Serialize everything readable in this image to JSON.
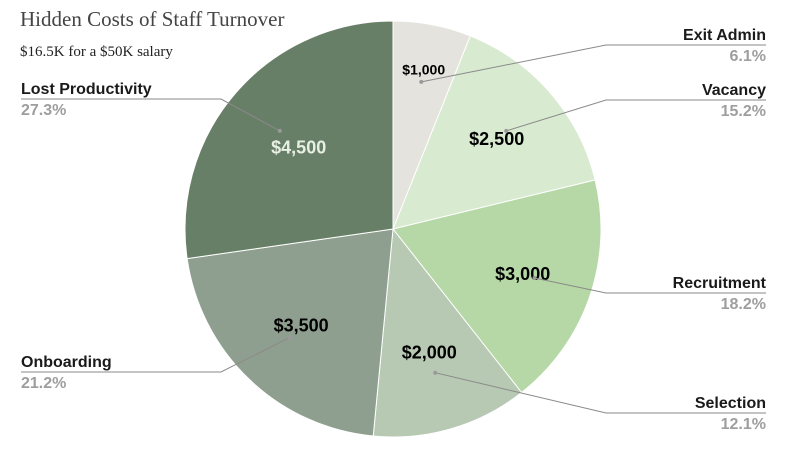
{
  "chart_data": {
    "type": "pie",
    "title": "Hidden Costs of Staff Turnover",
    "subtitle": "$16.5K for a $50K salary",
    "slices": [
      {
        "label": "Exit Admin",
        "value": 1000,
        "value_label": "$1,000",
        "percent_label": "6.1%",
        "color": "#e4e3de",
        "text_color": "#000000"
      },
      {
        "label": "Vacancy",
        "value": 2500,
        "value_label": "$2,500",
        "percent_label": "15.2%",
        "color": "#d8ead0",
        "text_color": "#000000"
      },
      {
        "label": "Recruitment",
        "value": 3000,
        "value_label": "$3,000",
        "percent_label": "18.2%",
        "color": "#b6d8a6",
        "text_color": "#000000"
      },
      {
        "label": "Selection",
        "value": 2000,
        "value_label": "$2,000",
        "percent_label": "12.1%",
        "color": "#b7c8b3",
        "text_color": "#000000"
      },
      {
        "label": "Onboarding",
        "value": 3500,
        "value_label": "$3,500",
        "percent_label": "21.2%",
        "color": "#8f9f8f",
        "text_color": "#000000"
      },
      {
        "label": "Lost Productivity",
        "value": 4500,
        "value_label": "$4,500",
        "percent_label": "27.3%",
        "color": "#687f67",
        "text_color": "#e8efe4"
      }
    ],
    "start_angle_deg": 0,
    "direction": "clockwise",
    "legend": "none"
  }
}
